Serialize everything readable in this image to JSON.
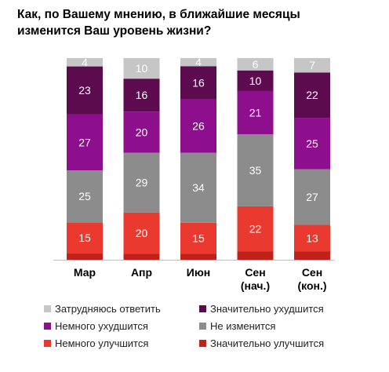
{
  "title_line1": "Как, по Вашему мнению, в ближайшие месяцы",
  "title_line2": "изменится Ваш уровень жизни?",
  "chart_data": {
    "type": "bar",
    "stacked": true,
    "orientation": "vertical",
    "categories": [
      [
        "Мар"
      ],
      [
        "Апр"
      ],
      [
        "Июн"
      ],
      [
        "Сен",
        "(нач.)"
      ],
      [
        "Сен",
        "(кон.)"
      ]
    ],
    "series": [
      {
        "name": "Значительно улучшится",
        "color": "#c0211b",
        "values": [
          3,
          3,
          3,
          4,
          4
        ],
        "show_labels": false
      },
      {
        "name": "Немного улучшится",
        "color": "#ea3a30",
        "values": [
          15,
          20,
          15,
          22,
          13
        ],
        "show_labels": true
      },
      {
        "name": "Не изменится",
        "color": "#8c8c8c",
        "values": [
          25,
          29,
          34,
          35,
          27
        ],
        "show_labels": true
      },
      {
        "name": "Немного ухудшится",
        "color": "#8e0f8e",
        "values": [
          27,
          20,
          26,
          21,
          25
        ],
        "show_labels": true
      },
      {
        "name": "Значительно ухудшится",
        "color": "#5b0b4e",
        "values": [
          23,
          16,
          16,
          10,
          22
        ],
        "show_labels": true
      },
      {
        "name": "Затрудняюсь ответить",
        "color": "#c6c6c6",
        "values": [
          4,
          10,
          4,
          6,
          7
        ],
        "show_labels": true
      }
    ],
    "ylim": [
      0,
      100
    ],
    "legend_position": "bottom",
    "legend_order": [
      "Затрудняюсь ответить",
      "Значительно ухудшится",
      "Немного ухудшится",
      "Не изменится",
      "Немного улучшится",
      "Значительно улучшится"
    ],
    "grid": false
  }
}
